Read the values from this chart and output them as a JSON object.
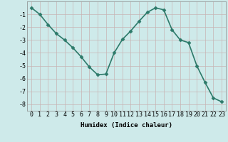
{
  "x": [
    0,
    1,
    2,
    3,
    4,
    5,
    6,
    7,
    8,
    9,
    10,
    11,
    12,
    13,
    14,
    15,
    16,
    17,
    18,
    19,
    20,
    21,
    22,
    23
  ],
  "y": [
    -0.5,
    -1.0,
    -1.8,
    -2.5,
    -3.0,
    -3.6,
    -4.3,
    -5.1,
    -5.7,
    -5.65,
    -4.0,
    -2.95,
    -2.3,
    -1.55,
    -0.85,
    -0.5,
    -0.65,
    -2.2,
    -3.0,
    -3.2,
    -5.0,
    -6.3,
    -7.5,
    -7.8
  ],
  "line_color": "#2d7a6a",
  "marker": "D",
  "marker_size": 2.5,
  "bg_color": "#ceeaea",
  "grid_major_color": "#c8b4b4",
  "xlabel": "Humidex (Indice chaleur)",
  "xlim": [
    -0.5,
    23.5
  ],
  "ylim": [
    -8.5,
    -0.0
  ],
  "yticks": [
    -8,
    -7,
    -6,
    -5,
    -4,
    -3,
    -2,
    -1
  ],
  "xticks": [
    0,
    1,
    2,
    3,
    4,
    5,
    6,
    7,
    8,
    9,
    10,
    11,
    12,
    13,
    14,
    15,
    16,
    17,
    18,
    19,
    20,
    21,
    22,
    23
  ],
  "xlabel_fontsize": 6.5,
  "tick_fontsize": 6,
  "linewidth": 1.2
}
